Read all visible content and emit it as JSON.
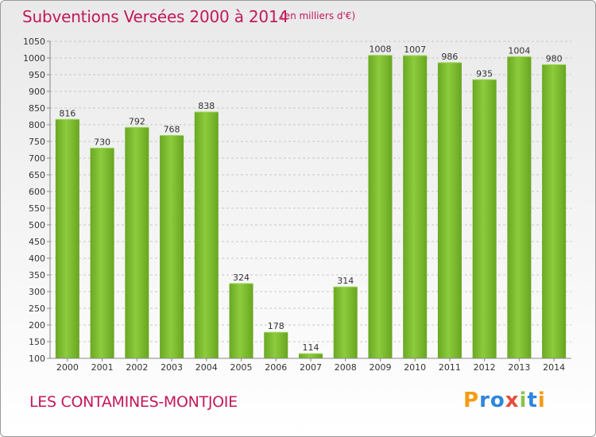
{
  "chart_data": {
    "type": "bar",
    "title": "Subventions Versées 2000 à 2014",
    "unit": "(en milliers d'€)",
    "categories": [
      "2000",
      "2001",
      "2002",
      "2003",
      "2004",
      "2005",
      "2006",
      "2007",
      "2008",
      "2009",
      "2010",
      "2011",
      "2012",
      "2013",
      "2014"
    ],
    "values": [
      816,
      730,
      792,
      768,
      838,
      324,
      178,
      114,
      314,
      1008,
      1007,
      986,
      935,
      1004,
      980
    ],
    "ylim": [
      100,
      1050
    ],
    "yticks": [
      100,
      150,
      200,
      250,
      300,
      350,
      400,
      450,
      500,
      550,
      600,
      650,
      700,
      750,
      800,
      850,
      900,
      950,
      1000,
      1050
    ],
    "grid": true,
    "bar_color": "#7cb82f"
  },
  "commune": "LES CONTAMINES-MONTJOIE",
  "logo": {
    "text": "Proxiti",
    "letters": [
      "P",
      "r",
      "o",
      "x",
      "i",
      "t",
      "i"
    ]
  }
}
